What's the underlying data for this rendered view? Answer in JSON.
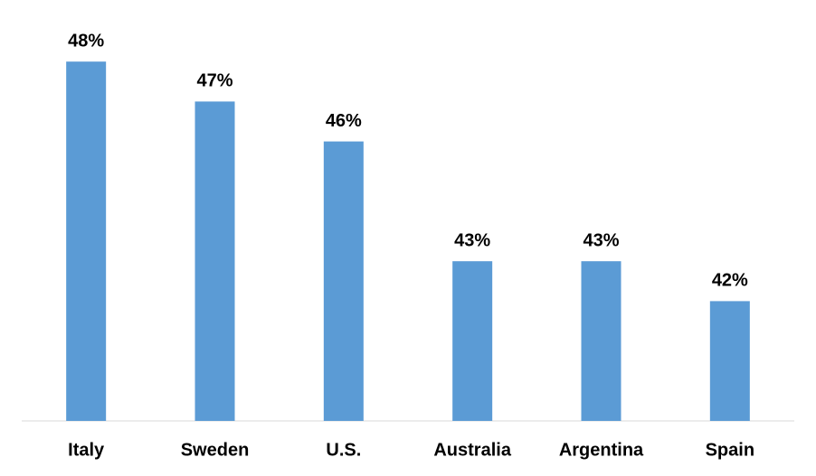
{
  "chart_data": {
    "type": "bar",
    "categories": [
      "Italy",
      "Sweden",
      "U.S.",
      "Australia",
      "Argentina",
      "Spain"
    ],
    "values": [
      48,
      47,
      46,
      43,
      43,
      42
    ],
    "value_labels": [
      "48%",
      "47%",
      "46%",
      "43%",
      "43%",
      "42%"
    ],
    "color": "#5b9bd5",
    "ylim": [
      39,
      49
    ]
  }
}
